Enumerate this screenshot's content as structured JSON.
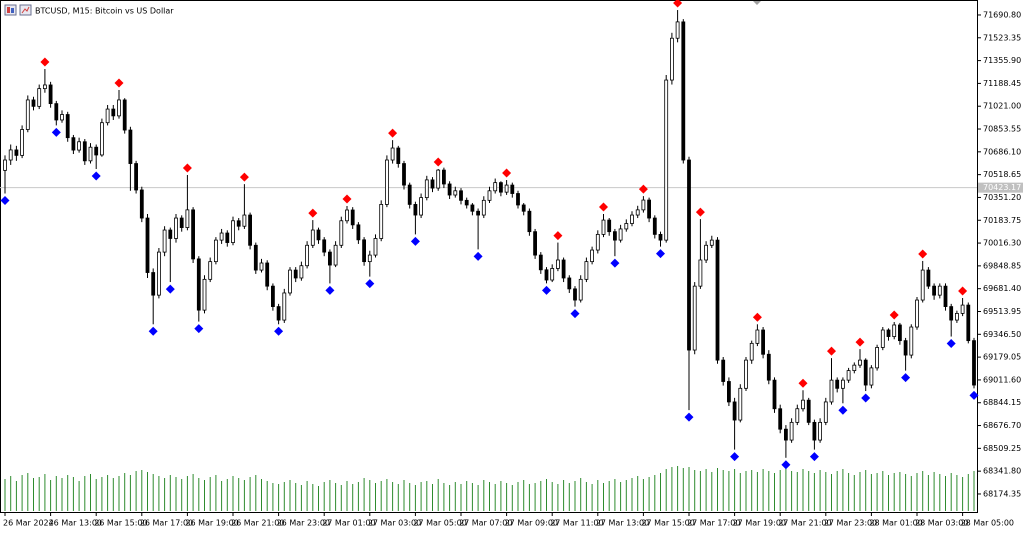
{
  "chart_data": {
    "type": "candlestick",
    "title": "BTCUSD, M15: Bitcoin vs US Dollar",
    "ylim": [
      68042,
      71764
    ],
    "yticks": [
      {
        "value": 71690.8,
        "label": "71690.80"
      },
      {
        "value": 71523.35,
        "label": "71523.35"
      },
      {
        "value": 71355.9,
        "label": "71355.90"
      },
      {
        "value": 71188.45,
        "label": "71188.45"
      },
      {
        "value": 71021,
        "label": "71021.00"
      },
      {
        "value": 70853.55,
        "label": "70853.55"
      },
      {
        "value": 70686.1,
        "label": "70686.10"
      },
      {
        "value": 70518.65,
        "label": "70518.65"
      },
      {
        "value": 70351.2,
        "label": "70351.20"
      },
      {
        "value": 70183.75,
        "label": "70183.75"
      },
      {
        "value": 70016.3,
        "label": "70016.30"
      },
      {
        "value": 69848.85,
        "label": "69848.85"
      },
      {
        "value": 69681.4,
        "label": "69681.40"
      },
      {
        "value": 69513.95,
        "label": "69513.95"
      },
      {
        "value": 69346.5,
        "label": "69346.50"
      },
      {
        "value": 69179.05,
        "label": "69179.05"
      },
      {
        "value": 69011.6,
        "label": "69011.60"
      },
      {
        "value": 68844.15,
        "label": "68844.15"
      },
      {
        "value": 68676.7,
        "label": "68676.70"
      },
      {
        "value": 68509.25,
        "label": "68509.25"
      },
      {
        "value": 68341.8,
        "label": "68341.80"
      },
      {
        "value": 68174.35,
        "label": "68174.35"
      }
    ],
    "current_price": {
      "value": 70423.17,
      "label": "70423.17"
    },
    "bull_color": "#ffffff",
    "bear_color": "#000000",
    "volume_color": "#2e8b2e",
    "fractal_up_color": "#ff0000",
    "fractal_down_color": "#0000ff",
    "categories": [
      "26 Mar 2024",
      null,
      null,
      null,
      null,
      null,
      null,
      null,
      "26 Mar 13:00",
      null,
      null,
      null,
      null,
      null,
      null,
      null,
      "26 Mar 15:00",
      null,
      null,
      null,
      null,
      null,
      null,
      null,
      "26 Mar 17:00",
      null,
      null,
      null,
      null,
      null,
      null,
      null,
      "26 Mar 19:00",
      null,
      null,
      null,
      null,
      null,
      null,
      null,
      "26 Mar 21:00",
      null,
      null,
      null,
      null,
      null,
      null,
      null,
      "26 Mar 23:00",
      null,
      null,
      null,
      null,
      null,
      null,
      null,
      "27 Mar 01:00",
      null,
      null,
      null,
      null,
      null,
      null,
      null,
      "27 Mar 03:00",
      null,
      null,
      null,
      null,
      null,
      null,
      null,
      "27 Mar 05:00",
      null,
      null,
      null,
      null,
      null,
      null,
      null,
      "27 Mar 07:00",
      null,
      null,
      null,
      null,
      null,
      null,
      null,
      "27 Mar 09:00",
      null,
      null,
      null,
      null,
      null,
      null,
      null,
      "27 Mar 11:00",
      null,
      null,
      null,
      null,
      null,
      null,
      null,
      "27 Mar 13:00",
      null,
      null,
      null,
      null,
      null,
      null,
      null,
      "27 Mar 15:00",
      null,
      null,
      null,
      null,
      null,
      null,
      null,
      "27 Mar 17:00",
      null,
      null,
      null,
      null,
      null,
      null,
      null,
      "27 Mar 19:00",
      null,
      null,
      null,
      null,
      null,
      null,
      null,
      "27 Mar 21:00",
      null,
      null,
      null,
      null,
      null,
      null,
      null,
      "27 Mar 23:00",
      null,
      null,
      null,
      null,
      null,
      null,
      null,
      "28 Mar 01:00",
      null,
      null,
      null,
      null,
      null,
      null,
      null,
      "28 Mar 03:00",
      null,
      null,
      null,
      null,
      null,
      null,
      null,
      "28 Mar 05:00",
      null,
      null
    ],
    "candles": [
      [
        70550,
        70660,
        70380,
        70626
      ],
      [
        70626,
        70740,
        70590,
        70700
      ],
      [
        70700,
        70730,
        70620,
        70660
      ],
      [
        70660,
        70880,
        70640,
        70850
      ],
      [
        70850,
        71100,
        70830,
        71067
      ],
      [
        71067,
        71090,
        70990,
        71020
      ],
      [
        71020,
        71180,
        71000,
        71150
      ],
      [
        71150,
        71294,
        71120,
        71177
      ],
      [
        71177,
        71200,
        71010,
        71040
      ],
      [
        71040,
        71060,
        70880,
        70920
      ],
      [
        70920,
        70990,
        70900,
        70960
      ],
      [
        70960,
        70980,
        70760,
        70790
      ],
      [
        70790,
        70810,
        70670,
        70699
      ],
      [
        70699,
        70790,
        70680,
        70760
      ],
      [
        70760,
        70780,
        70590,
        70620
      ],
      [
        70620,
        70750,
        70600,
        70720
      ],
      [
        70720,
        70740,
        70560,
        70663
      ],
      [
        70663,
        70930,
        70650,
        70900
      ],
      [
        70900,
        71030,
        70880,
        71000
      ],
      [
        71000,
        71030,
        70920,
        70950
      ],
      [
        70950,
        71140,
        70930,
        71067
      ],
      [
        71067,
        71080,
        70820,
        70846
      ],
      [
        70846,
        70870,
        70400,
        70600
      ],
      [
        70600,
        70620,
        70380,
        70406
      ],
      [
        70406,
        70430,
        70170,
        70200
      ],
      [
        70200,
        70230,
        69760,
        69800
      ],
      [
        69800,
        69830,
        69420,
        69634
      ],
      [
        69634,
        69980,
        69610,
        69950
      ],
      [
        69950,
        70140,
        69920,
        70112
      ],
      [
        70112,
        70130,
        69730,
        70050
      ],
      [
        70050,
        70230,
        70020,
        70200
      ],
      [
        70200,
        70220,
        70100,
        70130
      ],
      [
        70130,
        70516,
        70110,
        70260
      ],
      [
        70260,
        70280,
        69870,
        69900
      ],
      [
        69900,
        69920,
        69440,
        69524
      ],
      [
        69524,
        69780,
        69500,
        69750
      ],
      [
        69750,
        69910,
        69730,
        69880
      ],
      [
        69880,
        70060,
        69860,
        70038
      ],
      [
        70038,
        70120,
        70010,
        70090
      ],
      [
        70090,
        70110,
        69990,
        70020
      ],
      [
        70020,
        70210,
        70000,
        70180
      ],
      [
        70180,
        70200,
        70110,
        70140
      ],
      [
        70140,
        70449,
        70120,
        70222
      ],
      [
        70222,
        70240,
        69970,
        70000
      ],
      [
        70000,
        70020,
        69790,
        69818
      ],
      [
        69818,
        69900,
        69800,
        69870
      ],
      [
        69870,
        69890,
        69670,
        69700
      ],
      [
        69700,
        69720,
        69520,
        69550
      ],
      [
        69550,
        69570,
        69420,
        69451
      ],
      [
        69451,
        69680,
        69430,
        69650
      ],
      [
        69650,
        69840,
        69630,
        69818
      ],
      [
        69818,
        69840,
        69730,
        69760
      ],
      [
        69760,
        69880,
        69740,
        69850
      ],
      [
        69850,
        70030,
        69830,
        70000
      ],
      [
        70000,
        70185,
        69980,
        70112
      ],
      [
        70112,
        70130,
        70010,
        70040
      ],
      [
        70040,
        70060,
        69920,
        69950
      ],
      [
        69950,
        69970,
        69720,
        69855
      ],
      [
        69855,
        70030,
        69840,
        70000
      ],
      [
        70000,
        70210,
        69980,
        70180
      ],
      [
        70180,
        70288,
        70160,
        70259
      ],
      [
        70259,
        70280,
        70120,
        70150
      ],
      [
        70150,
        70170,
        70010,
        70040
      ],
      [
        70040,
        70060,
        69850,
        69880
      ],
      [
        69880,
        69960,
        69770,
        69928
      ],
      [
        69928,
        70080,
        69910,
        70050
      ],
      [
        70050,
        70330,
        70030,
        70300
      ],
      [
        70300,
        70660,
        70280,
        70626
      ],
      [
        70626,
        70772,
        70600,
        70714
      ],
      [
        70714,
        70730,
        70570,
        70600
      ],
      [
        70600,
        70620,
        70410,
        70442
      ],
      [
        70442,
        70460,
        70270,
        70300
      ],
      [
        70300,
        70320,
        70080,
        70222
      ],
      [
        70222,
        70380,
        70200,
        70350
      ],
      [
        70350,
        70510,
        70330,
        70480
      ],
      [
        70480,
        70500,
        70390,
        70420
      ],
      [
        70420,
        70560,
        70400,
        70552
      ],
      [
        70552,
        70570,
        70420,
        70450
      ],
      [
        70450,
        70470,
        70340,
        70369
      ],
      [
        70369,
        70430,
        70350,
        70400
      ],
      [
        70400,
        70420,
        70300,
        70330
      ],
      [
        70330,
        70350,
        70270,
        70296
      ],
      [
        70296,
        70310,
        70220,
        70250
      ],
      [
        70250,
        70270,
        69970,
        70222
      ],
      [
        70222,
        70360,
        70200,
        70330
      ],
      [
        70330,
        70430,
        70310,
        70400
      ],
      [
        70400,
        70490,
        70380,
        70460
      ],
      [
        70460,
        70470,
        70360,
        70390
      ],
      [
        70390,
        70479,
        70370,
        70442
      ],
      [
        70442,
        70460,
        70350,
        70380
      ],
      [
        70380,
        70400,
        70270,
        70296
      ],
      [
        70296,
        70310,
        70220,
        70250
      ],
      [
        70250,
        70270,
        70070,
        70100
      ],
      [
        70100,
        70120,
        69900,
        69928
      ],
      [
        69928,
        69950,
        69790,
        69820
      ],
      [
        69820,
        69840,
        69720,
        69745
      ],
      [
        69745,
        69860,
        69730,
        69830
      ],
      [
        69830,
        70020,
        69810,
        69892
      ],
      [
        69892,
        69910,
        69730,
        69760
      ],
      [
        69760,
        69780,
        69650,
        69680
      ],
      [
        69680,
        69700,
        69550,
        69598
      ],
      [
        69598,
        69780,
        69580,
        69750
      ],
      [
        69750,
        69910,
        69730,
        69880
      ],
      [
        69880,
        69990,
        69860,
        69965
      ],
      [
        69965,
        70110,
        69940,
        70080
      ],
      [
        70080,
        70230,
        70060,
        70185
      ],
      [
        70185,
        70200,
        70070,
        70100
      ],
      [
        70100,
        70120,
        69920,
        70038
      ],
      [
        70038,
        70150,
        70020,
        70120
      ],
      [
        70120,
        70190,
        70100,
        70160
      ],
      [
        70160,
        70250,
        70140,
        70222
      ],
      [
        70222,
        70290,
        70200,
        70260
      ],
      [
        70260,
        70361,
        70240,
        70332
      ],
      [
        70332,
        70350,
        70170,
        70200
      ],
      [
        70200,
        70220,
        70050,
        70080
      ],
      [
        70080,
        70100,
        69990,
        70038
      ],
      [
        70038,
        71250,
        70020,
        71213
      ],
      [
        71213,
        71560,
        71180,
        71520
      ],
      [
        71520,
        71727,
        71490,
        71640
      ],
      [
        71640,
        71660,
        70600,
        70626
      ],
      [
        70626,
        70650,
        68790,
        69231
      ],
      [
        69231,
        69730,
        69200,
        69700
      ],
      [
        69700,
        70192,
        69680,
        69892
      ],
      [
        69892,
        70030,
        69870,
        70000
      ],
      [
        70000,
        70070,
        69980,
        70038
      ],
      [
        70038,
        70060,
        69130,
        69157
      ],
      [
        69157,
        69180,
        68970,
        69000
      ],
      [
        69000,
        69030,
        68820,
        68850
      ],
      [
        68850,
        68880,
        68500,
        68717
      ],
      [
        68717,
        68980,
        68700,
        68950
      ],
      [
        68950,
        69180,
        68930,
        69157
      ],
      [
        69157,
        69300,
        69130,
        69280
      ],
      [
        69280,
        69420,
        69260,
        69378
      ],
      [
        69378,
        69400,
        69170,
        69200
      ],
      [
        69200,
        69230,
        68980,
        69010
      ],
      [
        69010,
        69030,
        68770,
        68800
      ],
      [
        68800,
        68830,
        68620,
        68650
      ],
      [
        68650,
        68680,
        68440,
        68570
      ],
      [
        68570,
        68730,
        68550,
        68700
      ],
      [
        68700,
        68830,
        68680,
        68800
      ],
      [
        68800,
        68936,
        68780,
        68863
      ],
      [
        68863,
        68880,
        68680,
        68700
      ],
      [
        68700,
        68720,
        68500,
        68570
      ],
      [
        68570,
        68730,
        68550,
        68700
      ],
      [
        68700,
        68880,
        68680,
        68850
      ],
      [
        68850,
        69172,
        68830,
        69010
      ],
      [
        69010,
        69030,
        68920,
        68950
      ],
      [
        68950,
        69030,
        68840,
        69010
      ],
      [
        69010,
        69100,
        68990,
        69080
      ],
      [
        69080,
        69140,
        69060,
        69120
      ],
      [
        69120,
        69238,
        69100,
        69157
      ],
      [
        69157,
        69170,
        68930,
        68974
      ],
      [
        68974,
        69120,
        68950,
        69100
      ],
      [
        69100,
        69270,
        69080,
        69250
      ],
      [
        69250,
        69400,
        69230,
        69378
      ],
      [
        69378,
        69390,
        69300,
        69330
      ],
      [
        69330,
        69437,
        69310,
        69415
      ],
      [
        69415,
        69430,
        69270,
        69300
      ],
      [
        69300,
        69320,
        69080,
        69194
      ],
      [
        69194,
        69420,
        69170,
        69400
      ],
      [
        69400,
        69620,
        69380,
        69598
      ],
      [
        69598,
        69885,
        69580,
        69818
      ],
      [
        69818,
        69840,
        69680,
        69700
      ],
      [
        69700,
        69720,
        69600,
        69634
      ],
      [
        69634,
        69720,
        69610,
        69700
      ],
      [
        69700,
        69720,
        69520,
        69550
      ],
      [
        69550,
        69570,
        69330,
        69451
      ],
      [
        69451,
        69520,
        69430,
        69500
      ],
      [
        69500,
        69613,
        69480,
        69561
      ],
      [
        69561,
        69580,
        69280,
        69300
      ],
      [
        69300,
        69320,
        68950,
        68974
      ]
    ],
    "fractals": {
      "up": [
        7,
        20,
        32,
        42,
        54,
        60,
        68,
        76,
        88,
        97,
        105,
        112,
        118,
        122,
        132,
        140,
        145,
        150,
        156,
        161,
        168
      ],
      "down": [
        0,
        9,
        16,
        26,
        29,
        34,
        48,
        57,
        64,
        72,
        83,
        95,
        100,
        107,
        115,
        120,
        128,
        137,
        142,
        147,
        151,
        158,
        166,
        170
      ]
    },
    "vlim": [
      0,
      50
    ],
    "volumes": [
      32,
      35,
      30,
      36,
      38,
      33,
      34,
      37,
      31,
      35,
      33,
      36,
      34,
      30,
      35,
      37,
      32,
      34,
      36,
      33,
      35,
      38,
      36,
      40,
      41,
      39,
      37,
      35,
      33,
      36,
      34,
      32,
      35,
      37,
      33,
      31,
      34,
      36,
      30,
      32,
      35,
      33,
      31,
      34,
      36,
      32,
      30,
      28,
      27,
      29,
      31,
      28,
      26,
      30,
      27,
      25,
      29,
      31,
      28,
      26,
      30,
      27,
      29,
      33,
      31,
      28,
      30,
      32,
      29,
      27,
      31,
      28,
      26,
      29,
      30,
      27,
      32,
      28,
      26,
      29,
      27,
      30,
      28,
      26,
      31,
      29,
      27,
      30,
      28,
      26,
      29,
      31,
      27,
      28,
      30,
      32,
      29,
      27,
      31,
      28,
      30,
      33,
      29,
      27,
      31,
      28,
      30,
      32,
      29,
      31,
      33,
      35,
      32,
      34,
      36,
      38,
      42,
      44,
      45,
      43,
      44,
      41,
      40,
      42,
      39,
      43,
      41,
      40,
      42,
      38,
      40,
      41,
      39,
      42,
      40,
      38,
      41,
      43,
      40,
      39,
      42,
      40,
      38,
      41,
      39,
      37,
      40,
      42,
      38,
      36,
      39,
      41,
      37,
      38,
      40,
      36,
      38,
      39,
      37,
      35,
      38,
      40,
      36,
      39,
      37,
      35,
      38,
      36,
      34,
      37,
      40
    ]
  }
}
